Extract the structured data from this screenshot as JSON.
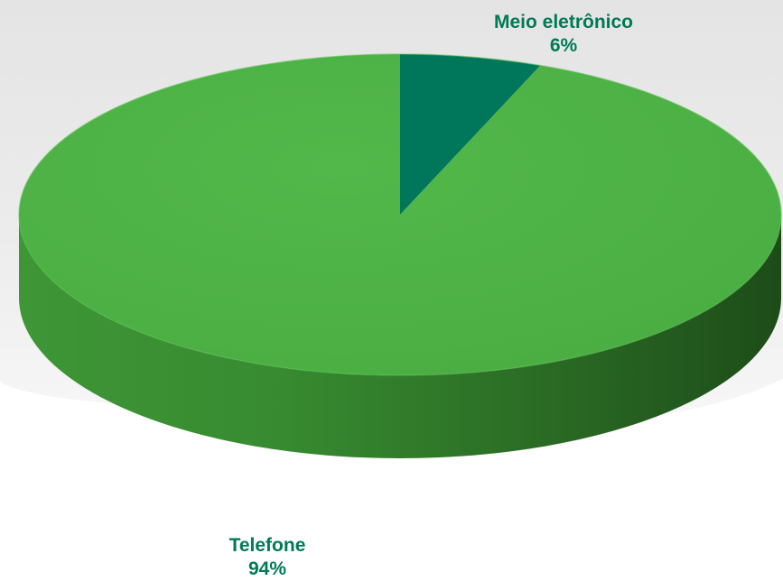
{
  "chart_data": {
    "type": "pie",
    "style": "3d",
    "title": "",
    "slices": [
      {
        "label": "Meio eletrônico",
        "value": 6,
        "percent_label": "6%",
        "color": "#00765A"
      },
      {
        "label": "Telefone",
        "value": 94,
        "percent_label": "94%",
        "color": "#4DB347"
      }
    ],
    "label_color": "#007A55",
    "legend": "none"
  }
}
